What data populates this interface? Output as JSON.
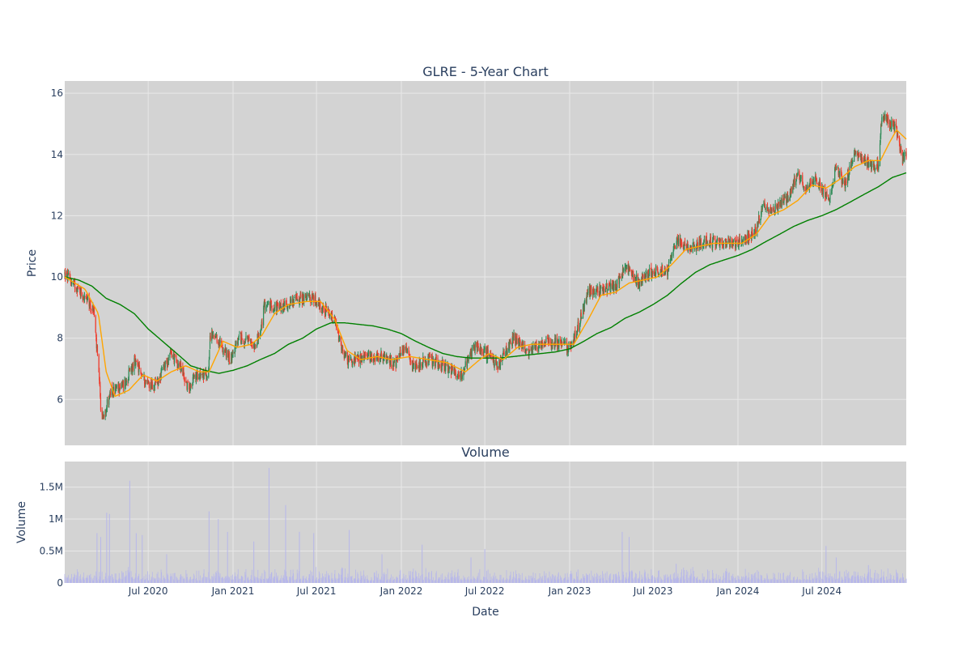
{
  "chart_data": {
    "type": "candlestick",
    "title": "GLRE - 5-Year Chart",
    "colors": {
      "background": "#ffffff",
      "plot_bg": "#d3d3d3",
      "grid": "#e8e8e8",
      "up": "#2e8b57",
      "down": "#ef3b2c",
      "ma_short": "#ffa500",
      "ma_long": "#008000",
      "volume": "#b7b7ea",
      "text": "#2a3f5f"
    },
    "price_panel": {
      "ylabel": "Price",
      "ylim": [
        4.5,
        16.4
      ],
      "yticks": [
        6,
        8,
        10,
        12,
        14,
        16
      ],
      "ytick_labels": [
        "6",
        "8",
        "10",
        "12",
        "14",
        "16"
      ]
    },
    "volume_panel": {
      "title": "Volume",
      "ylabel": "Volume",
      "ylim": [
        0,
        1900000
      ],
      "yticks": [
        0,
        500000,
        1000000,
        1500000
      ],
      "ytick_labels": [
        "0",
        "0.5M",
        "1M",
        "1.5M"
      ]
    },
    "x_axis": {
      "xlabel": "Date",
      "xlim": [
        "2020-01-02",
        "2024-12-31"
      ],
      "ticks": [
        "2020-07-01",
        "2021-01-01",
        "2021-07-01",
        "2022-01-01",
        "2022-07-01",
        "2023-01-01",
        "2023-07-01",
        "2024-01-01",
        "2024-07-01"
      ],
      "tick_labels": [
        "Jul 2020",
        "Jan 2021",
        "Jul 2021",
        "Jan 2022",
        "Jul 2022",
        "Jan 2023",
        "Jul 2023",
        "Jan 2024",
        "Jul 2024"
      ]
    },
    "price_anchors": [
      [
        "2020-01-02",
        10.1
      ],
      [
        "2020-02-01",
        9.6
      ],
      [
        "2020-03-05",
        8.9
      ],
      [
        "2020-03-15",
        7.0
      ],
      [
        "2020-03-22",
        5.3
      ],
      [
        "2020-04-10",
        6.2
      ],
      [
        "2020-05-10",
        6.5
      ],
      [
        "2020-06-01",
        7.2
      ],
      [
        "2020-06-25",
        6.6
      ],
      [
        "2020-07-15",
        6.4
      ],
      [
        "2020-08-20",
        7.5
      ],
      [
        "2020-09-10",
        7.0
      ],
      [
        "2020-09-25",
        6.4
      ],
      [
        "2020-10-20",
        6.9
      ],
      [
        "2020-11-08",
        6.7
      ],
      [
        "2020-11-12",
        8.1
      ],
      [
        "2020-12-05",
        7.8
      ],
      [
        "2020-12-25",
        7.3
      ],
      [
        "2021-01-15",
        8.0
      ],
      [
        "2021-02-15",
        7.8
      ],
      [
        "2021-03-01",
        8.1
      ],
      [
        "2021-03-10",
        9.1
      ],
      [
        "2021-04-15",
        9.0
      ],
      [
        "2021-05-20",
        9.3
      ],
      [
        "2021-06-25",
        9.3
      ],
      [
        "2021-07-20",
        8.9
      ],
      [
        "2021-08-10",
        8.5
      ],
      [
        "2021-08-25",
        7.6
      ],
      [
        "2021-09-10",
        7.2
      ],
      [
        "2021-10-15",
        7.4
      ],
      [
        "2021-11-15",
        7.4
      ],
      [
        "2021-12-20",
        7.2
      ],
      [
        "2022-01-10",
        7.8
      ],
      [
        "2022-01-25",
        7.1
      ],
      [
        "2022-03-01",
        7.3
      ],
      [
        "2022-04-01",
        7.1
      ],
      [
        "2022-05-10",
        6.8
      ],
      [
        "2022-06-10",
        7.8
      ],
      [
        "2022-07-05",
        7.5
      ],
      [
        "2022-07-30",
        7.1
      ],
      [
        "2022-09-01",
        8.0
      ],
      [
        "2022-10-01",
        7.6
      ],
      [
        "2022-11-15",
        7.9
      ],
      [
        "2022-12-15",
        7.8
      ],
      [
        "2023-01-01",
        7.7
      ],
      [
        "2023-01-20",
        8.4
      ],
      [
        "2023-02-10",
        9.5
      ],
      [
        "2023-03-10",
        9.6
      ],
      [
        "2023-04-10",
        9.7
      ],
      [
        "2023-05-01",
        10.3
      ],
      [
        "2023-06-01",
        9.8
      ],
      [
        "2023-07-01",
        10.2
      ],
      [
        "2023-08-01",
        10.2
      ],
      [
        "2023-08-20",
        11.2
      ],
      [
        "2023-09-20",
        10.9
      ],
      [
        "2023-10-20",
        11.2
      ],
      [
        "2023-11-20",
        11.1
      ],
      [
        "2023-12-20",
        11.1
      ],
      [
        "2024-01-20",
        11.2
      ],
      [
        "2024-02-10",
        11.6
      ],
      [
        "2024-02-25",
        12.3
      ],
      [
        "2024-03-20",
        12.2
      ],
      [
        "2024-04-20",
        12.6
      ],
      [
        "2024-05-10",
        13.4
      ],
      [
        "2024-05-25",
        12.8
      ],
      [
        "2024-06-20",
        13.2
      ],
      [
        "2024-07-15",
        12.5
      ],
      [
        "2024-08-01",
        13.6
      ],
      [
        "2024-08-20",
        13.0
      ],
      [
        "2024-09-10",
        14.1
      ],
      [
        "2024-10-01",
        13.8
      ],
      [
        "2024-10-20",
        13.6
      ],
      [
        "2024-11-01",
        13.7
      ],
      [
        "2024-11-08",
        15.3
      ],
      [
        "2024-11-25",
        15.0
      ],
      [
        "2024-12-10",
        14.8
      ],
      [
        "2024-12-22",
        13.8
      ],
      [
        "2024-12-31",
        14.0
      ]
    ],
    "ma_short_anchors": [
      [
        "2020-01-02",
        10.0
      ],
      [
        "2020-02-15",
        9.6
      ],
      [
        "2020-03-15",
        8.8
      ],
      [
        "2020-04-01",
        6.9
      ],
      [
        "2020-04-20",
        6.1
      ],
      [
        "2020-05-20",
        6.3
      ],
      [
        "2020-06-20",
        6.8
      ],
      [
        "2020-07-20",
        6.6
      ],
      [
        "2020-08-20",
        6.9
      ],
      [
        "2020-09-20",
        7.1
      ],
      [
        "2020-10-20",
        6.9
      ],
      [
        "2020-11-10",
        6.9
      ],
      [
        "2020-12-10",
        7.9
      ],
      [
        "2021-01-10",
        7.7
      ],
      [
        "2021-02-10",
        7.8
      ],
      [
        "2021-03-05",
        8.1
      ],
      [
        "2021-04-01",
        8.8
      ],
      [
        "2021-05-01",
        9.1
      ],
      [
        "2021-06-10",
        9.2
      ],
      [
        "2021-07-10",
        9.2
      ],
      [
        "2021-08-10",
        8.6
      ],
      [
        "2021-09-05",
        7.6
      ],
      [
        "2021-10-05",
        7.3
      ],
      [
        "2021-11-10",
        7.4
      ],
      [
        "2021-12-10",
        7.3
      ],
      [
        "2022-01-20",
        7.4
      ],
      [
        "2022-03-01",
        7.3
      ],
      [
        "2022-04-10",
        7.2
      ],
      [
        "2022-05-20",
        6.9
      ],
      [
        "2022-06-20",
        7.3
      ],
      [
        "2022-07-10",
        7.5
      ],
      [
        "2022-08-10",
        7.3
      ],
      [
        "2022-09-10",
        7.7
      ],
      [
        "2022-10-10",
        7.8
      ],
      [
        "2022-11-10",
        7.8
      ],
      [
        "2022-12-10",
        7.8
      ],
      [
        "2023-01-10",
        7.8
      ],
      [
        "2023-02-10",
        8.6
      ],
      [
        "2023-03-10",
        9.4
      ],
      [
        "2023-04-10",
        9.5
      ],
      [
        "2023-05-10",
        9.8
      ],
      [
        "2023-06-10",
        9.9
      ],
      [
        "2023-07-10",
        10.0
      ],
      [
        "2023-08-10",
        10.4
      ],
      [
        "2023-09-10",
        10.9
      ],
      [
        "2023-10-10",
        11.0
      ],
      [
        "2023-11-10",
        11.1
      ],
      [
        "2023-12-10",
        11.1
      ],
      [
        "2024-01-10",
        11.1
      ],
      [
        "2024-02-10",
        11.4
      ],
      [
        "2024-03-10",
        12.0
      ],
      [
        "2024-04-10",
        12.2
      ],
      [
        "2024-05-10",
        12.5
      ],
      [
        "2024-06-10",
        13.0
      ],
      [
        "2024-07-10",
        12.9
      ],
      [
        "2024-08-10",
        13.2
      ],
      [
        "2024-09-10",
        13.6
      ],
      [
        "2024-10-10",
        13.8
      ],
      [
        "2024-11-05",
        13.8
      ],
      [
        "2024-11-25",
        14.4
      ],
      [
        "2024-12-10",
        14.8
      ],
      [
        "2024-12-31",
        14.5
      ]
    ],
    "ma_long_anchors": [
      [
        "2020-01-02",
        10.0
      ],
      [
        "2020-02-01",
        9.9
      ],
      [
        "2020-03-01",
        9.7
      ],
      [
        "2020-04-01",
        9.3
      ],
      [
        "2020-05-01",
        9.1
      ],
      [
        "2020-06-01",
        8.8
      ],
      [
        "2020-07-01",
        8.3
      ],
      [
        "2020-08-01",
        7.9
      ],
      [
        "2020-09-01",
        7.5
      ],
      [
        "2020-10-01",
        7.1
      ],
      [
        "2020-11-01",
        6.95
      ],
      [
        "2020-12-01",
        6.85
      ],
      [
        "2021-01-01",
        6.95
      ],
      [
        "2021-02-01",
        7.1
      ],
      [
        "2021-03-01",
        7.3
      ],
      [
        "2021-04-01",
        7.5
      ],
      [
        "2021-05-01",
        7.8
      ],
      [
        "2021-06-01",
        8.0
      ],
      [
        "2021-07-01",
        8.3
      ],
      [
        "2021-08-01",
        8.5
      ],
      [
        "2021-09-01",
        8.5
      ],
      [
        "2021-10-01",
        8.45
      ],
      [
        "2021-11-01",
        8.4
      ],
      [
        "2021-12-01",
        8.3
      ],
      [
        "2022-01-01",
        8.15
      ],
      [
        "2022-02-01",
        7.9
      ],
      [
        "2022-03-01",
        7.7
      ],
      [
        "2022-04-01",
        7.5
      ],
      [
        "2022-05-01",
        7.4
      ],
      [
        "2022-06-01",
        7.35
      ],
      [
        "2022-07-01",
        7.35
      ],
      [
        "2022-08-01",
        7.35
      ],
      [
        "2022-09-01",
        7.4
      ],
      [
        "2022-10-01",
        7.45
      ],
      [
        "2022-11-01",
        7.5
      ],
      [
        "2022-12-01",
        7.55
      ],
      [
        "2023-01-01",
        7.65
      ],
      [
        "2023-02-01",
        7.9
      ],
      [
        "2023-03-01",
        8.15
      ],
      [
        "2023-04-01",
        8.35
      ],
      [
        "2023-05-01",
        8.65
      ],
      [
        "2023-06-01",
        8.85
      ],
      [
        "2023-07-01",
        9.1
      ],
      [
        "2023-08-01",
        9.4
      ],
      [
        "2023-09-01",
        9.8
      ],
      [
        "2023-10-01",
        10.15
      ],
      [
        "2023-11-01",
        10.4
      ],
      [
        "2023-12-01",
        10.55
      ],
      [
        "2024-01-01",
        10.7
      ],
      [
        "2024-02-01",
        10.9
      ],
      [
        "2024-03-01",
        11.15
      ],
      [
        "2024-04-01",
        11.4
      ],
      [
        "2024-05-01",
        11.65
      ],
      [
        "2024-06-01",
        11.85
      ],
      [
        "2024-07-01",
        12.0
      ],
      [
        "2024-08-01",
        12.2
      ],
      [
        "2024-09-01",
        12.45
      ],
      [
        "2024-10-01",
        12.7
      ],
      [
        "2024-11-01",
        12.95
      ],
      [
        "2024-12-01",
        13.25
      ],
      [
        "2024-12-31",
        13.4
      ]
    ],
    "volume_spikes": [
      [
        "2020-03-12",
        780000
      ],
      [
        "2020-03-20",
        720000
      ],
      [
        "2020-04-02",
        1100000
      ],
      [
        "2020-04-08",
        1080000
      ],
      [
        "2020-05-22",
        1600000
      ],
      [
        "2020-06-05",
        780000
      ],
      [
        "2020-06-18",
        750000
      ],
      [
        "2020-08-10",
        450000
      ],
      [
        "2020-11-10",
        1120000
      ],
      [
        "2020-11-30",
        1000000
      ],
      [
        "2020-12-20",
        800000
      ],
      [
        "2021-02-15",
        650000
      ],
      [
        "2021-03-20",
        1800000
      ],
      [
        "2021-04-25",
        1220000
      ],
      [
        "2021-05-25",
        800000
      ],
      [
        "2021-06-25",
        780000
      ],
      [
        "2021-09-10",
        830000
      ],
      [
        "2021-11-20",
        450000
      ],
      [
        "2022-02-15",
        600000
      ],
      [
        "2022-06-01",
        400000
      ],
      [
        "2022-07-01",
        530000
      ],
      [
        "2023-04-25",
        800000
      ],
      [
        "2023-05-10",
        720000
      ],
      [
        "2023-08-20",
        300000
      ],
      [
        "2024-07-10",
        580000
      ],
      [
        "2024-08-01",
        400000
      ],
      [
        "2024-10-10",
        280000
      ]
    ]
  }
}
